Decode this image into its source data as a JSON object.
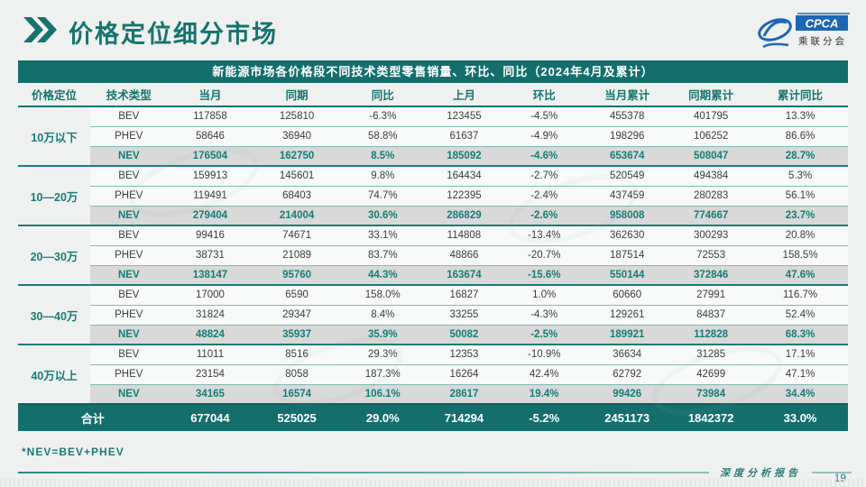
{
  "page": {
    "title": "价格定位细分市场",
    "footnote": "*NEV=BEV+PHEV",
    "footer_label": "深度分析报告",
    "page_number": "19",
    "logo": {
      "acronym": "CPCA",
      "name": "乘联分会"
    },
    "colors": {
      "accent_teal": "#146f6c",
      "nev_row_bg": "#d8d9d8",
      "logo_blue": "#1d66b4"
    }
  },
  "table": {
    "title": "新能源市场各价格段不同技术类型零售销量、环比、同比（2024年4月及累计）",
    "columns": [
      "价格定位",
      "技术类型",
      "当月",
      "同期",
      "同比",
      "上月",
      "环比",
      "当月累计",
      "同期累计",
      "累计同比"
    ],
    "groups": [
      {
        "label": "10万以下",
        "rows": [
          {
            "type": "BEV",
            "cells": [
              "117858",
              "125810",
              "-6.3%",
              "123455",
              "-4.5%",
              "455378",
              "401795",
              "13.3%"
            ]
          },
          {
            "type": "PHEV",
            "cells": [
              "58646",
              "36940",
              "58.8%",
              "61637",
              "-4.9%",
              "198296",
              "106252",
              "86.6%"
            ]
          },
          {
            "type": "NEV",
            "cells": [
              "176504",
              "162750",
              "8.5%",
              "185092",
              "-4.6%",
              "653674",
              "508047",
              "28.7%"
            ]
          }
        ]
      },
      {
        "label": "10—20万",
        "rows": [
          {
            "type": "BEV",
            "cells": [
              "159913",
              "145601",
              "9.8%",
              "164434",
              "-2.7%",
              "520549",
              "494384",
              "5.3%"
            ]
          },
          {
            "type": "PHEV",
            "cells": [
              "119491",
              "68403",
              "74.7%",
              "122395",
              "-2.4%",
              "437459",
              "280283",
              "56.1%"
            ]
          },
          {
            "type": "NEV",
            "cells": [
              "279404",
              "214004",
              "30.6%",
              "286829",
              "-2.6%",
              "958008",
              "774667",
              "23.7%"
            ]
          }
        ]
      },
      {
        "label": "20—30万",
        "rows": [
          {
            "type": "BEV",
            "cells": [
              "99416",
              "74671",
              "33.1%",
              "114808",
              "-13.4%",
              "362630",
              "300293",
              "20.8%"
            ]
          },
          {
            "type": "PHEV",
            "cells": [
              "38731",
              "21089",
              "83.7%",
              "48866",
              "-20.7%",
              "187514",
              "72553",
              "158.5%"
            ]
          },
          {
            "type": "NEV",
            "cells": [
              "138147",
              "95760",
              "44.3%",
              "163674",
              "-15.6%",
              "550144",
              "372846",
              "47.6%"
            ]
          }
        ]
      },
      {
        "label": "30—40万",
        "rows": [
          {
            "type": "BEV",
            "cells": [
              "17000",
              "6590",
              "158.0%",
              "16827",
              "1.0%",
              "60660",
              "27991",
              "116.7%"
            ]
          },
          {
            "type": "PHEV",
            "cells": [
              "31824",
              "29347",
              "8.4%",
              "33255",
              "-4.3%",
              "129261",
              "84837",
              "52.4%"
            ]
          },
          {
            "type": "NEV",
            "cells": [
              "48824",
              "35937",
              "35.9%",
              "50082",
              "-2.5%",
              "189921",
              "112828",
              "68.3%"
            ]
          }
        ]
      },
      {
        "label": "40万以上",
        "rows": [
          {
            "type": "BEV",
            "cells": [
              "11011",
              "8516",
              "29.3%",
              "12353",
              "-10.9%",
              "36634",
              "31285",
              "17.1%"
            ]
          },
          {
            "type": "PHEV",
            "cells": [
              "23154",
              "8058",
              "187.3%",
              "16264",
              "42.4%",
              "62792",
              "42699",
              "47.1%"
            ]
          },
          {
            "type": "NEV",
            "cells": [
              "34165",
              "16574",
              "106.1%",
              "28617",
              "19.4%",
              "99426",
              "73984",
              "34.4%"
            ]
          }
        ]
      }
    ],
    "total": {
      "label": "合计",
      "cells": [
        "677044",
        "525025",
        "29.0%",
        "714294",
        "-5.2%",
        "2451173",
        "1842372",
        "33.0%"
      ]
    }
  }
}
